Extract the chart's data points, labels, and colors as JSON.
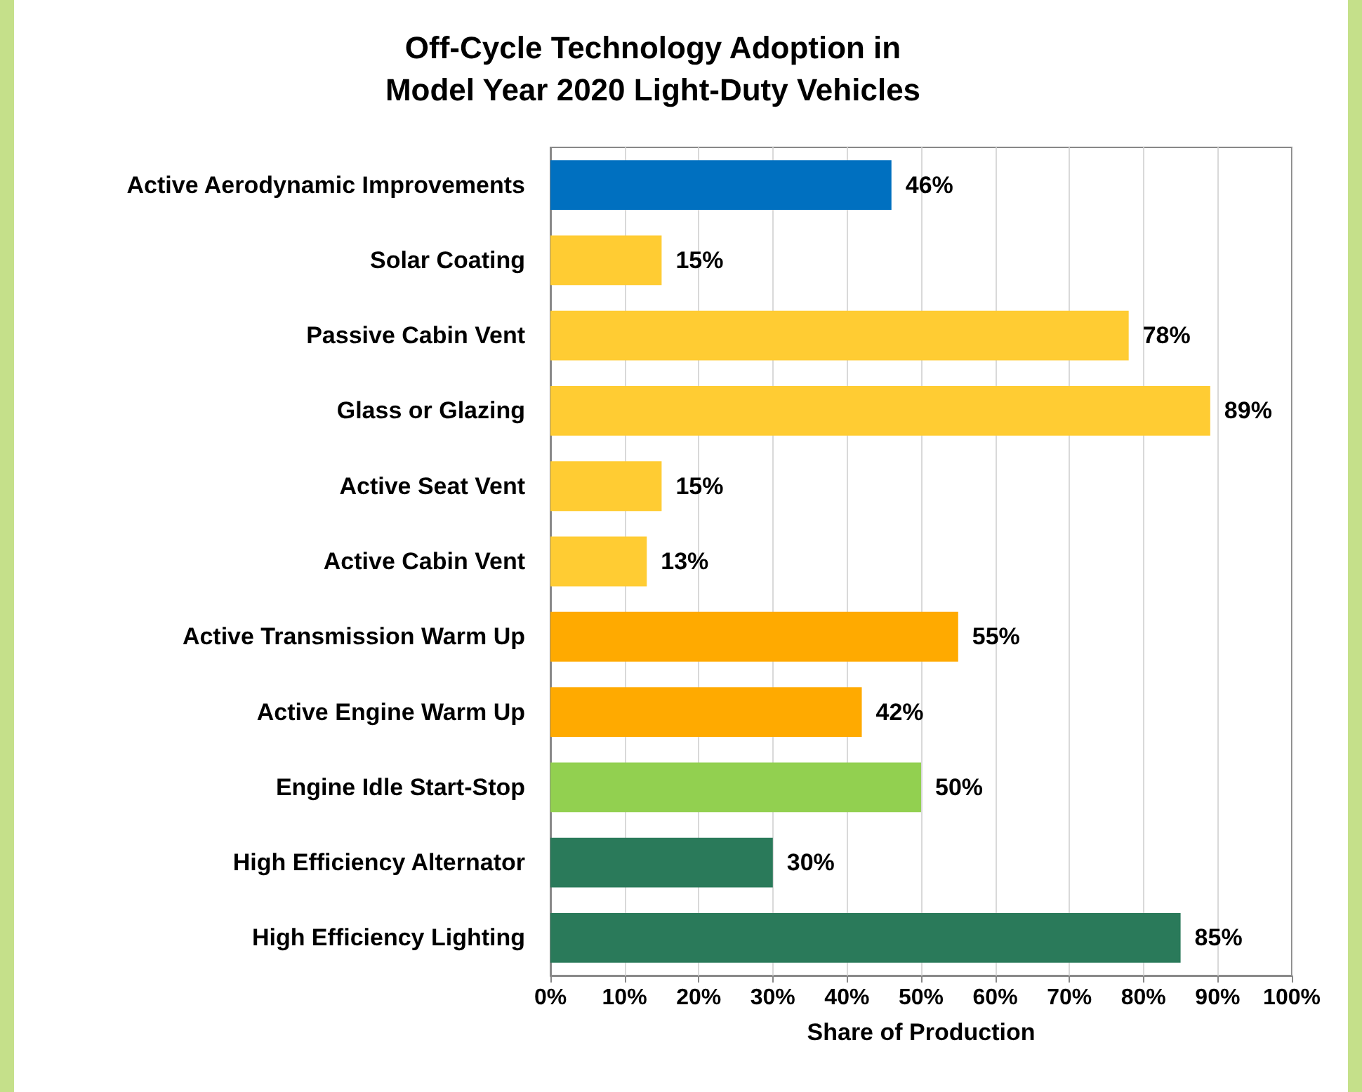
{
  "chart_data": {
    "type": "bar",
    "orientation": "horizontal",
    "title": "Off-Cycle Technology Adoption in\nModel Year 2020 Light-Duty Vehicles",
    "xlabel": "Share of Production",
    "categories": [
      "Active Aerodynamic Improvements",
      "Solar Coating",
      "Passive Cabin Vent",
      "Glass or Glazing",
      "Active Seat Vent",
      "Active Cabin Vent",
      "Active Transmission Warm Up",
      "Active Engine Warm Up",
      "Engine Idle Start-Stop",
      "High Efficiency Alternator",
      "High Efficiency Lighting"
    ],
    "values": [
      46,
      15,
      78,
      89,
      15,
      13,
      55,
      42,
      50,
      30,
      85
    ],
    "value_labels": [
      "46%",
      "15%",
      "78%",
      "89%",
      "15%",
      "13%",
      "55%",
      "42%",
      "50%",
      "30%",
      "85%"
    ],
    "colors": [
      "#0070c0",
      "#ffcc33",
      "#ffcc33",
      "#ffcc33",
      "#ffcc33",
      "#ffcc33",
      "#ffaa00",
      "#ffaa00",
      "#92d050",
      "#2a7a5a",
      "#2a7a5a"
    ],
    "xlim": [
      0,
      100
    ],
    "xticks": [
      {
        "value": 0,
        "label": "0%"
      },
      {
        "value": 10,
        "label": "10%"
      },
      {
        "value": 20,
        "label": "20%"
      },
      {
        "value": 30,
        "label": "30%"
      },
      {
        "value": 40,
        "label": "40%"
      },
      {
        "value": 50,
        "label": "50%"
      },
      {
        "value": 60,
        "label": "60%"
      },
      {
        "value": 70,
        "label": "70%"
      },
      {
        "value": 80,
        "label": "80%"
      },
      {
        "value": 90,
        "label": "90%"
      },
      {
        "value": 100,
        "label": "100%"
      }
    ],
    "grid": "x"
  }
}
